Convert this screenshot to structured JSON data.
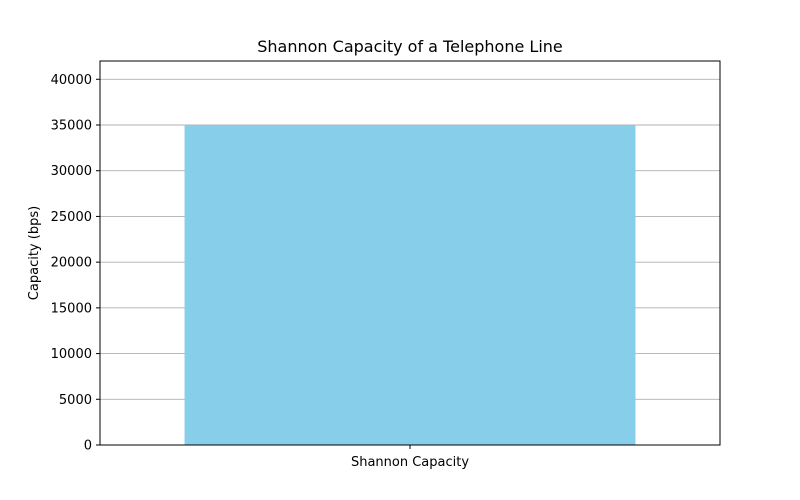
{
  "chart_data": {
    "type": "bar",
    "title": "Shannon Capacity of a Telephone Line",
    "xlabel": "",
    "ylabel": "Capacity (bps)",
    "categories": [
      "Shannon Capacity"
    ],
    "values": [
      35000
    ],
    "ylim": [
      0,
      42000
    ],
    "yticks": [
      0,
      5000,
      10000,
      15000,
      20000,
      25000,
      30000,
      35000,
      40000
    ],
    "grid": "y",
    "bar_color": "#87CEEB",
    "grid_color": "#b0b0b0",
    "axis_color": "#000000"
  }
}
